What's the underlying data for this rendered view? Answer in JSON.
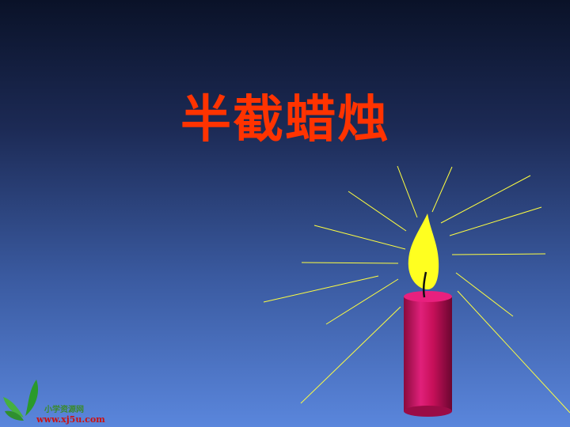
{
  "slide": {
    "title": "半截蜡烛",
    "title_color": "#ff3300"
  },
  "illustration": {
    "candle_color": "#c8105a",
    "flame_color": "#ffff20",
    "ray_color": "#ffff40"
  },
  "watermark": {
    "site_name": "小学资源网",
    "url": "www.xj5u.com",
    "site_name_color": "#3a8a2a",
    "url_color": "#cc1111",
    "icon": "green-leaf-logo-icon"
  }
}
